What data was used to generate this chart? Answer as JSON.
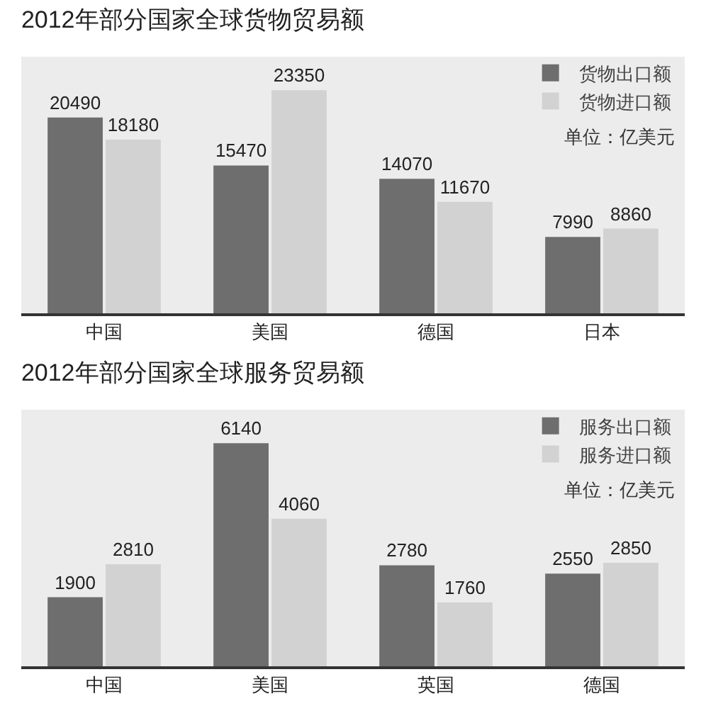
{
  "chart_data": [
    {
      "type": "bar",
      "title": "2012年部分国家全球货物贸易额",
      "categories": [
        "中国",
        "美国",
        "德国",
        "日本"
      ],
      "series": [
        {
          "name": "货物出口额",
          "color": "#6e6e6e",
          "values": [
            20490,
            15470,
            14070,
            7990
          ]
        },
        {
          "name": "货物进口额",
          "color": "#d2d2d2",
          "values": [
            18180,
            23350,
            11670,
            8860
          ]
        }
      ],
      "annotations": [
        "单位：亿美元"
      ],
      "data_labels": true,
      "legend": "top right"
    },
    {
      "type": "bar",
      "title": "2012年部分国家全球服务贸易额",
      "categories": [
        "中国",
        "美国",
        "英国",
        "德国"
      ],
      "series": [
        {
          "name": "服务出口额",
          "color": "#6e6e6e",
          "values": [
            1900,
            6140,
            2780,
            2550
          ]
        },
        {
          "name": "服务进口额",
          "color": "#d2d2d2",
          "values": [
            2810,
            4060,
            1760,
            2850
          ]
        }
      ],
      "annotations": [
        "单位：亿美元"
      ],
      "data_labels": true,
      "legend": "top right"
    }
  ]
}
